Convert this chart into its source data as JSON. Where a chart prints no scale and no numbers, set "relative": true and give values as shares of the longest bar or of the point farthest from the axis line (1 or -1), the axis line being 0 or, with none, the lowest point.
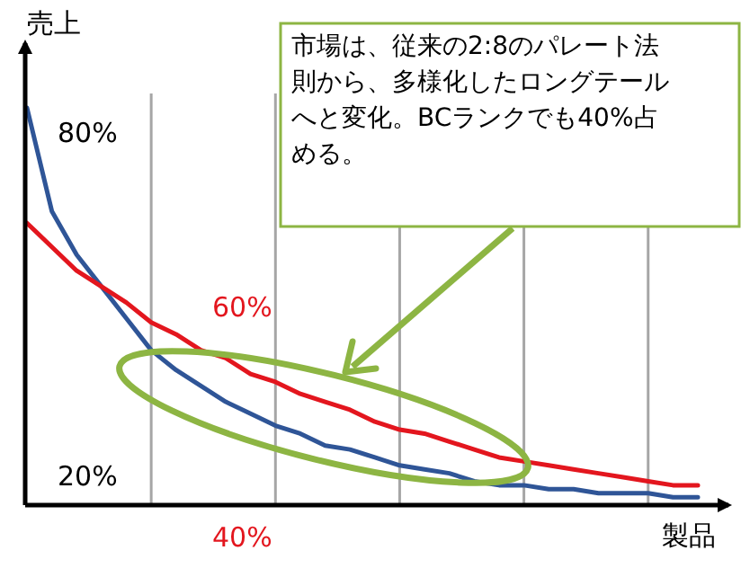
{
  "chart_data": {
    "type": "line",
    "relative": true,
    "ylabel": "売上",
    "xlabel": "製品",
    "categories": [
      null,
      null,
      null,
      null,
      null,
      null,
      null,
      null,
      null,
      null,
      null,
      null,
      null,
      null,
      null,
      null,
      null,
      null,
      null,
      null,
      null,
      null,
      null,
      null,
      null,
      null,
      null,
      null
    ],
    "grid": "x",
    "annotations": [
      "市場は、従来の2:8のパレート法則から、多様化したロングテールへと変化。BCランクでも40%占める。",
      "80%",
      "20%",
      "60%",
      "40%"
    ],
    "series": [
      {
        "color": "#2f5597",
        "values": [
          1.0,
          0.74,
          0.63,
          0.55,
          0.47,
          0.39,
          0.34,
          0.3,
          0.26,
          0.23,
          0.2,
          0.18,
          0.15,
          0.14,
          0.12,
          0.1,
          0.09,
          0.08,
          0.06,
          0.05,
          0.05,
          0.04,
          0.04,
          0.03,
          0.03,
          0.03,
          0.02,
          0.02
        ]
      },
      {
        "color": "#e3161e",
        "values": [
          0.71,
          0.65,
          0.59,
          0.55,
          0.51,
          0.46,
          0.43,
          0.39,
          0.37,
          0.33,
          0.31,
          0.28,
          0.26,
          0.24,
          0.21,
          0.19,
          0.18,
          0.16,
          0.14,
          0.12,
          0.11,
          0.1,
          0.09,
          0.08,
          0.07,
          0.06,
          0.05,
          0.05
        ]
      }
    ]
  }
}
